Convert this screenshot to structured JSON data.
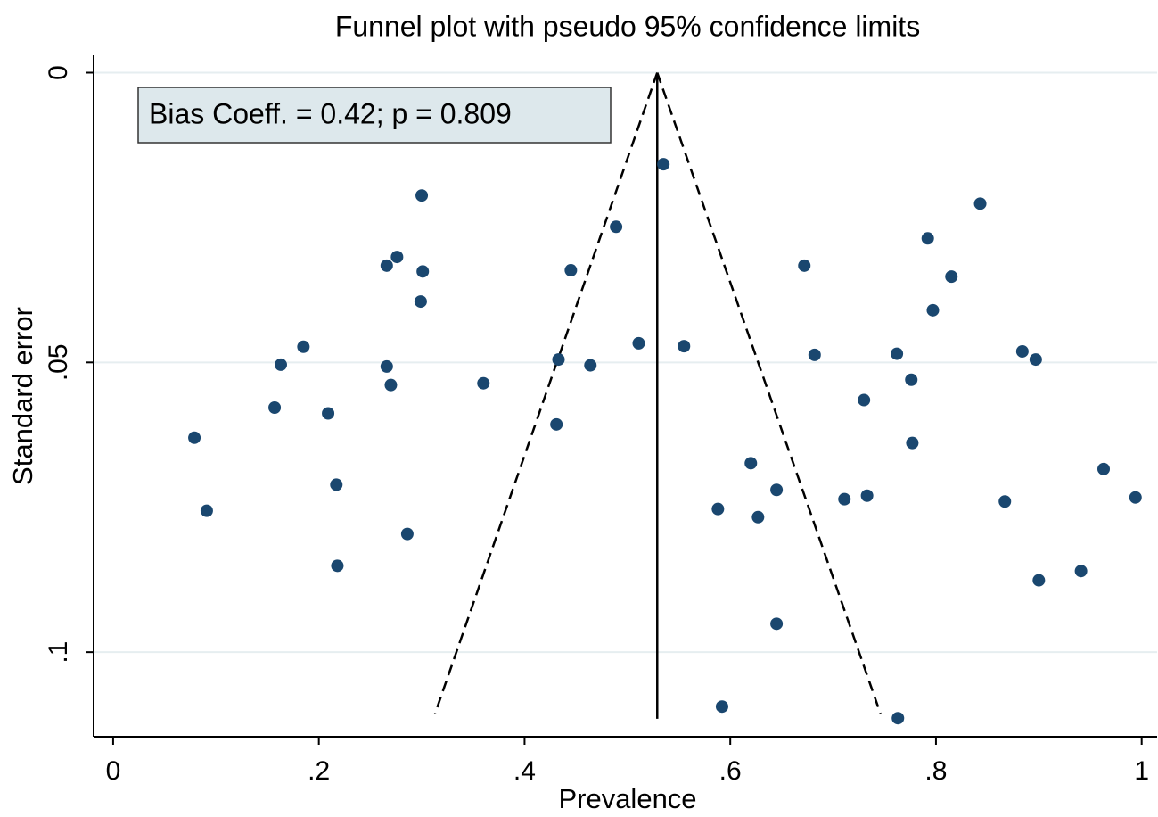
{
  "chart_data": {
    "type": "scatter",
    "title": "Funnel plot with pseudo 95% confidence limits",
    "x_label": "Prevalence",
    "y_label": "Standard error",
    "annotation": "Bias Coeff. = 0.42; p = 0.809",
    "color": "#1a476f",
    "grid": true,
    "xlim": [
      -0.019,
      1.015
    ],
    "ylim": [
      0.1146,
      -0.003
    ],
    "xticks": [
      0,
      {
        "value": 0.2,
        "label": ".2"
      },
      {
        "value": 0.4,
        "label": ".4"
      },
      {
        "value": 0.6,
        "label": ".6"
      },
      {
        "value": 0.8,
        "label": ".8"
      },
      1
    ],
    "yticks": [
      0,
      {
        "value": 0.05,
        "label": ".05"
      },
      {
        "value": 0.1,
        "label": ".1"
      }
    ],
    "x": [
      0.535,
      0.3,
      0.489,
      0.843,
      0.792,
      0.266,
      0.276,
      0.301,
      0.445,
      0.672,
      0.815,
      0.299,
      0.797,
      0.185,
      0.163,
      0.511,
      0.555,
      0.433,
      0.464,
      0.266,
      0.682,
      0.762,
      0.884,
      0.897,
      0.27,
      0.36,
      0.776,
      0.73,
      0.157,
      0.209,
      0.079,
      0.431,
      0.777,
      0.62,
      0.963,
      0.217,
      0.645,
      0.711,
      0.733,
      0.994,
      0.091,
      0.588,
      0.627,
      0.867,
      0.286,
      0.218,
      0.941,
      0.9,
      0.645,
      0.592,
      0.763
    ],
    "values": [
      0.0158,
      0.0212,
      0.0266,
      0.0226,
      0.0286,
      0.0333,
      0.0318,
      0.0343,
      0.0341,
      0.0333,
      0.0352,
      0.0395,
      0.041,
      0.0473,
      0.0504,
      0.0467,
      0.0472,
      0.0495,
      0.0505,
      0.0507,
      0.0487,
      0.0485,
      0.0481,
      0.0495,
      0.0539,
      0.0536,
      0.053,
      0.0565,
      0.0578,
      0.0588,
      0.063,
      0.0607,
      0.0639,
      0.0674,
      0.0684,
      0.0711,
      0.072,
      0.0736,
      0.073,
      0.0733,
      0.0756,
      0.0753,
      0.0767,
      0.074,
      0.0796,
      0.0851,
      0.086,
      0.0876,
      0.0951,
      0.1094,
      0.1114
    ],
    "lines": [
      {
        "x": [
          0.529,
          0.529
        ],
        "y": [
          0,
          0.1115
        ],
        "dashed": false
      },
      {
        "x": [
          0.529,
          0.313
        ],
        "y": [
          0,
          0.1106
        ],
        "dashed": true
      },
      {
        "x": [
          0.529,
          0.746
        ],
        "y": [
          0,
          0.1106
        ],
        "dashed": true
      }
    ]
  }
}
